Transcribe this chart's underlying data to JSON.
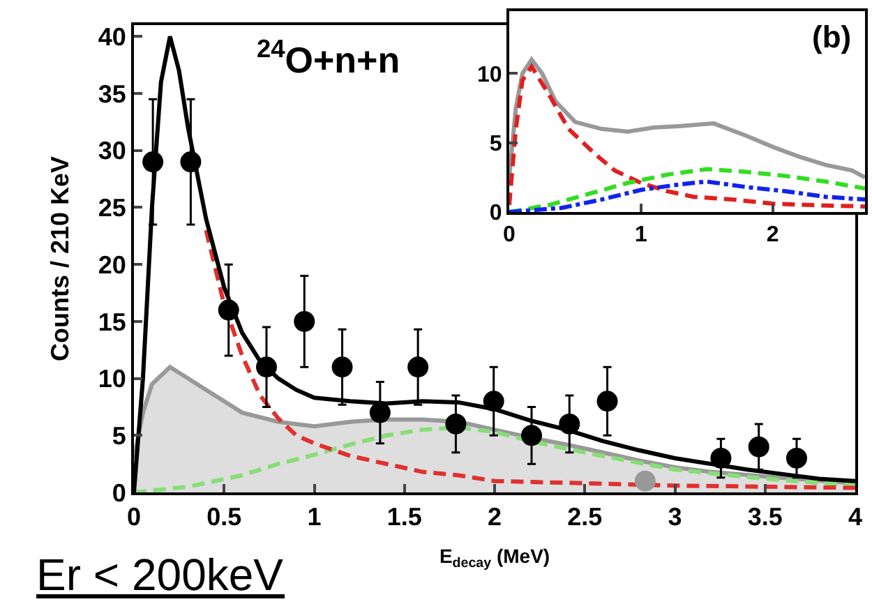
{
  "chart_data": [
    {
      "type": "scatter",
      "xlabel": "E$_{decay}$ (MeV)",
      "ylabel": "Counts / 210 KeV",
      "xlim": [
        0,
        4
      ],
      "ylim": [
        0,
        41
      ],
      "xticks": [
        0,
        0.5,
        1,
        1.5,
        2,
        2.5,
        3,
        3.5,
        4
      ],
      "yticks": [
        0,
        5,
        10,
        15,
        20,
        25,
        30,
        35,
        40
      ],
      "grid": false,
      "annotations": [
        "$^{24}$O+n+n",
        "Er < 200keV"
      ],
      "series": [
        {
          "type": "area",
          "color": "#999999",
          "x": [
            0,
            0.05,
            0.1,
            0.2,
            0.3,
            0.4,
            0.5,
            0.6,
            0.8,
            1.0,
            1.2,
            1.4,
            1.6,
            1.8,
            2.0,
            2.2,
            2.4,
            2.6,
            2.8,
            3.0,
            3.2,
            3.5,
            4.0
          ],
          "values": [
            3,
            7,
            9.5,
            11,
            10,
            9,
            8,
            7,
            6.2,
            5.8,
            6.2,
            6.4,
            6.4,
            6.2,
            5.5,
            4.8,
            4.2,
            3.5,
            2.8,
            2.2,
            1.8,
            1.4,
            0.8
          ]
        },
        {
          "type": "line",
          "line_style": "dashed",
          "color": "#88dd77",
          "x": [
            0,
            0.3,
            0.6,
            0.8,
            1.0,
            1.2,
            1.4,
            1.6,
            1.8,
            2.0,
            2.2,
            2.5,
            3.0,
            3.5,
            4.0
          ],
          "values": [
            0,
            0.5,
            1.5,
            2.5,
            3.3,
            4.2,
            5,
            5.5,
            5.7,
            5.3,
            4.5,
            3.5,
            2,
            1.2,
            0.6
          ]
        },
        {
          "type": "line",
          "line_style": "dashed",
          "color": "#e03030",
          "x": [
            0.4,
            0.5,
            0.6,
            0.7,
            0.8,
            0.9,
            1.0,
            1.2,
            1.4,
            1.6,
            1.8,
            2.0,
            2.5,
            3.0,
            3.5,
            4.0
          ],
          "values": [
            23,
            16.5,
            12,
            8.5,
            6.5,
            5,
            4.3,
            3.2,
            2.5,
            1.8,
            1.5,
            1.0,
            0.8,
            0.6,
            0.5,
            0.4
          ]
        },
        {
          "type": "line",
          "line_style": "solid",
          "color": "#000000",
          "x": [
            0,
            0.05,
            0.1,
            0.15,
            0.2,
            0.25,
            0.3,
            0.35,
            0.4,
            0.5,
            0.6,
            0.7,
            0.8,
            0.9,
            1.0,
            1.2,
            1.4,
            1.6,
            1.8,
            2.0,
            2.2,
            2.4,
            2.6,
            2.8,
            3.0,
            3.2,
            3.4,
            3.6,
            3.8,
            4.0
          ],
          "values": [
            0,
            10,
            25,
            36,
            40,
            37,
            32,
            28,
            24,
            18,
            14,
            11.5,
            10,
            9,
            8.3,
            8,
            7.8,
            8,
            7.9,
            7.3,
            6.3,
            5.5,
            4.5,
            3.7,
            3,
            2.5,
            2,
            1.6,
            1.2,
            1.0
          ]
        },
        {
          "marker": "circle",
          "color": "#000000",
          "x": [
            0.105,
            0.315,
            0.525,
            0.735,
            0.945,
            1.155,
            1.365,
            1.575,
            1.785,
            1.995,
            2.205,
            2.415,
            2.625,
            2.835,
            3.255,
            3.465,
            3.675
          ],
          "values": [
            29,
            29,
            16,
            11,
            15,
            11,
            7,
            11,
            6,
            8,
            5,
            6,
            8,
            1,
            3,
            4,
            3
          ],
          "errors": [
            5.5,
            5.5,
            4,
            3.5,
            4,
            3.3,
            2.7,
            3.3,
            2.5,
            3,
            2.5,
            2.5,
            3,
            null,
            1.7,
            2,
            1.7
          ],
          "colors": [
            "#000000",
            "#000000",
            "#000000",
            "#000000",
            "#000000",
            "#000000",
            "#000000",
            "#000000",
            "#000000",
            "#000000",
            "#000000",
            "#000000",
            "#000000",
            "#999999",
            "#000000",
            "#000000",
            "#000000"
          ]
        }
      ]
    },
    {
      "type": "line",
      "xlim": [
        0,
        2.7
      ],
      "ylim": [
        0,
        14.5
      ],
      "xticks": [
        0,
        1,
        2
      ],
      "yticks": [
        0,
        5,
        10
      ],
      "grid": false,
      "annotations": [
        "(b)"
      ],
      "series": [
        {
          "line_style": "solid",
          "color": "#999999",
          "x": [
            0,
            0.05,
            0.1,
            0.17,
            0.25,
            0.35,
            0.5,
            0.7,
            0.9,
            1.1,
            1.3,
            1.55,
            1.8,
            2.0,
            2.2,
            2.4,
            2.6,
            2.7
          ],
          "values": [
            2.5,
            7.5,
            10,
            11,
            10,
            8,
            6.5,
            6,
            5.8,
            6.1,
            6.2,
            6.4,
            5.5,
            4.7,
            4,
            3.4,
            3,
            2.5
          ]
        },
        {
          "line_style": "dashed",
          "color": "#e02020",
          "x": [
            0,
            0.05,
            0.1,
            0.17,
            0.3,
            0.45,
            0.65,
            0.8,
            1.0,
            1.2,
            1.4,
            1.7,
            2.0,
            2.3,
            2.7
          ],
          "values": [
            0.5,
            6,
            9.5,
            10.5,
            8.5,
            6,
            4.2,
            3,
            2.1,
            1.5,
            1.1,
            0.9,
            0.6,
            0.5,
            0.4
          ]
        },
        {
          "line_style": "dashed",
          "color": "#33dd22",
          "x": [
            0,
            0.3,
            0.6,
            0.9,
            1.2,
            1.5,
            1.8,
            2.1,
            2.4,
            2.7
          ],
          "values": [
            0,
            0.5,
            1.3,
            2.1,
            2.7,
            3.1,
            2.9,
            2.6,
            2.2,
            1.7
          ]
        },
        {
          "line_style": "dashdot",
          "color": "#1122ee",
          "x": [
            0,
            0.4,
            0.7,
            1.0,
            1.3,
            1.5,
            1.8,
            2.1,
            2.4,
            2.7
          ],
          "values": [
            0,
            0.3,
            0.9,
            1.6,
            2.0,
            2.2,
            1.8,
            1.5,
            1.1,
            0.9
          ]
        }
      ]
    }
  ]
}
